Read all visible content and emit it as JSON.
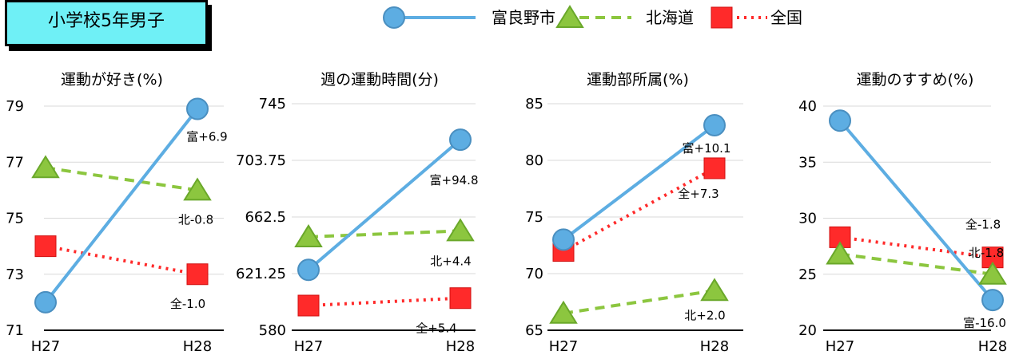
{
  "header": {
    "title": "小学校5年男子"
  },
  "legend": [
    {
      "name": "富良野市",
      "marker": "circle",
      "color": "#5dade2",
      "line": "solid"
    },
    {
      "name": "北海道",
      "marker": "triangle",
      "color": "#8cc63f",
      "line": "dashed"
    },
    {
      "name": "全国",
      "marker": "square",
      "color": "#ff2a2a",
      "line": "dotted"
    }
  ],
  "chart_data": [
    {
      "type": "line",
      "title": "運動が好き(%)",
      "categories": [
        "H27",
        "H28"
      ],
      "ylim": [
        71,
        79
      ],
      "yticks": [
        "71",
        "73",
        "75",
        "77",
        "79"
      ],
      "grid": true,
      "series": [
        {
          "name": "富良野市",
          "values": [
            72.0,
            78.9
          ],
          "label": "富+6.9"
        },
        {
          "name": "北海道",
          "values": [
            76.8,
            76.0
          ],
          "label": "北-0.8"
        },
        {
          "name": "全国",
          "values": [
            74.0,
            73.0
          ],
          "label": "全-1.0"
        }
      ]
    },
    {
      "type": "line",
      "title": "週の運動時間(分)",
      "categories": [
        "H27",
        "H28"
      ],
      "ylim": [
        580,
        745
      ],
      "yticks": [
        "580",
        "621.25",
        "662.5",
        "703.75",
        "745"
      ],
      "grid": true,
      "series": [
        {
          "name": "富良野市",
          "values": [
            624,
            718.8
          ],
          "label": "富+94.8"
        },
        {
          "name": "北海道",
          "values": [
            648,
            652.4
          ],
          "label": "北+4.4"
        },
        {
          "name": "全国",
          "values": [
            598,
            603.4
          ],
          "label": "全+5.4"
        }
      ]
    },
    {
      "type": "line",
      "title": "運動部所属(%)",
      "categories": [
        "H27",
        "H28"
      ],
      "ylim": [
        65,
        85
      ],
      "yticks": [
        "65",
        "70",
        "75",
        "80",
        "85"
      ],
      "grid": true,
      "series": [
        {
          "name": "富良野市",
          "values": [
            73.0,
            83.1
          ],
          "label": "富+10.1"
        },
        {
          "name": "北海道",
          "values": [
            66.5,
            68.5
          ],
          "label": "北+2.0"
        },
        {
          "name": "全国",
          "values": [
            72.0,
            79.3
          ],
          "label": "全+7.3"
        }
      ]
    },
    {
      "type": "line",
      "title": "運動のすすめ(%)",
      "categories": [
        "H27",
        "H28"
      ],
      "ylim": [
        20,
        40
      ],
      "yticks": [
        "20",
        "25",
        "30",
        "35",
        "40"
      ],
      "grid": true,
      "series": [
        {
          "name": "富良野市",
          "values": [
            38.7,
            22.7
          ],
          "label": "富-16.0"
        },
        {
          "name": "北海道",
          "values": [
            26.8,
            25.0
          ],
          "label": "北-1.8"
        },
        {
          "name": "全国",
          "values": [
            28.3,
            26.5
          ],
          "label": "全-1.8"
        }
      ]
    }
  ]
}
